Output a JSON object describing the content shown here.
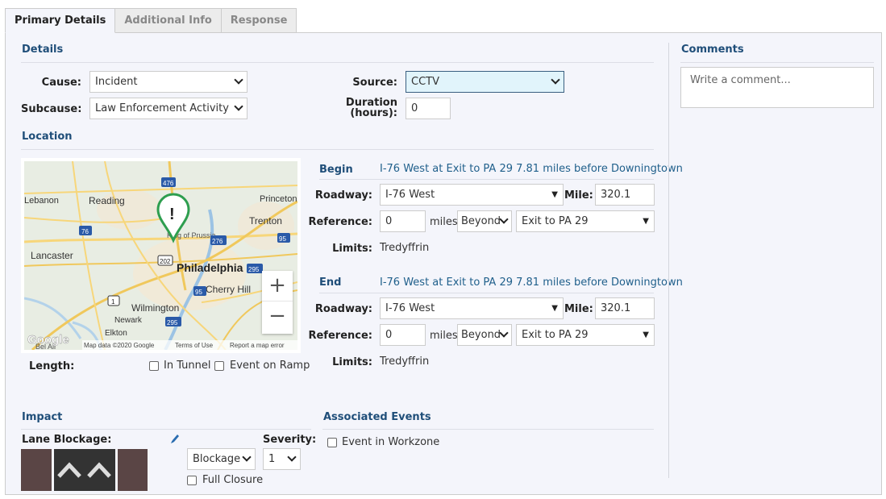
{
  "tabs": [
    {
      "label": "Primary Details",
      "active": true
    },
    {
      "label": "Additional Info"
    },
    {
      "label": "Response"
    }
  ],
  "details": {
    "title": "Details",
    "cause_label": "Cause:",
    "cause_value": "Incident",
    "subcause_label": "Subcause:",
    "subcause_value": "Law Enforcement Activity",
    "source_label": "Source:",
    "source_value": "CCTV",
    "duration_label_1": "Duration",
    "duration_label_2": "(hours):",
    "duration_value": "0"
  },
  "location": {
    "title": "Location",
    "map": {
      "attribution_logo": "Google",
      "attribution_text": "Map data ©2020 Google",
      "terms": "Terms of Use",
      "report": "Report a map error",
      "zoom_in": "+",
      "zoom_out": "−",
      "places": [
        "Lebanon",
        "Reading",
        "Princeton",
        "Trenton",
        "Lancaster",
        "Philadelphia",
        "Cherry Hill",
        "Wilmington",
        "Newark",
        "Elkton",
        "King of Prussia",
        "Bel Air"
      ],
      "route_shields": [
        "476",
        "76",
        "276",
        "95",
        "202",
        "295",
        "95",
        "1",
        "295"
      ],
      "marker": "!"
    },
    "length_label": "Length:",
    "in_tunnel_label": "In Tunnel",
    "event_on_ramp_label": "Event on Ramp",
    "begin": {
      "title": "Begin",
      "description": "I-76 West at Exit to PA 29 7.81 miles before Downingtown",
      "roadway_label": "Roadway:",
      "roadway_value": "I-76 West",
      "mile_label": "Mile:",
      "mile_value": "320.1",
      "reference_label": "Reference:",
      "reference_value": "0",
      "miles_label": "miles",
      "direction_value": "Beyond",
      "reference_point": "Exit to PA 29",
      "limits_label": "Limits:",
      "limits_value": "Tredyffrin"
    },
    "end": {
      "title": "End",
      "description": "I-76 West at Exit to PA 29 7.81 miles before Downingtown",
      "roadway_label": "Roadway:",
      "roadway_value": "I-76 West",
      "mile_label": "Mile:",
      "mile_value": "320.1",
      "reference_label": "Reference:",
      "reference_value": "0",
      "miles_label": "miles",
      "direction_value": "Beyond",
      "reference_point": "Exit to PA 29",
      "limits_label": "Limits:",
      "limits_value": "Tredyffrin"
    }
  },
  "comments": {
    "title": "Comments",
    "placeholder": "Write a comment..."
  },
  "impact": {
    "title": "Impact",
    "lane_blockage_label": "Lane Blockage:",
    "edit_icon": "pencil-icon",
    "blockage_value": "Blockage",
    "severity_label": "Severity:",
    "severity_value": "1",
    "full_closure_label": "Full Closure",
    "colors": {
      "shoulder": "#5a4545",
      "lane": "#333333"
    }
  },
  "associated": {
    "title": "Associated Events",
    "event_in_workzone_label": "Event in Workzone"
  },
  "colors": {
    "accent": "#1f4e79",
    "link": "#1f5f8b",
    "panel_bg": "#f4f5fb",
    "source_bg": "#e1f4fb",
    "marker_green": "#2e9e4f"
  }
}
